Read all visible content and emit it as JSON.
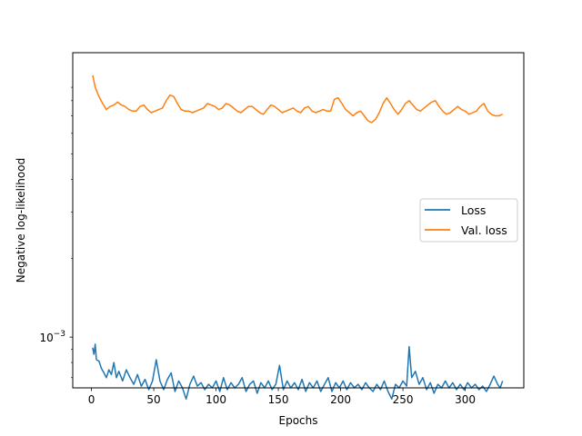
{
  "chart_data": {
    "type": "line",
    "xlabel": "Epochs",
    "ylabel": "Negative log-likelihood",
    "y_scale": "log",
    "xlim": [
      -15,
      347
    ],
    "ylim": [
      0.00064,
      0.0122
    ],
    "x_ticks": [
      0,
      50,
      100,
      150,
      200,
      250,
      300
    ],
    "y_major_ticks": [
      {
        "value": 0.001,
        "label_base": "10",
        "label_exp": "−3"
      }
    ],
    "legend_placement": "center-right",
    "series": [
      {
        "name": "Loss",
        "color": "#1f77b4",
        "points": [
          [
            1,
            0.00091
          ],
          [
            2,
            0.00086
          ],
          [
            3,
            0.00094
          ],
          [
            4,
            0.00082
          ],
          [
            6,
            0.00081
          ],
          [
            8,
            0.00076
          ],
          [
            10,
            0.00073
          ],
          [
            12,
            0.0007
          ],
          [
            14,
            0.00075
          ],
          [
            16,
            0.00072
          ],
          [
            18,
            0.0008
          ],
          [
            20,
            0.0007
          ],
          [
            22,
            0.00074
          ],
          [
            25,
            0.00068
          ],
          [
            28,
            0.00075
          ],
          [
            31,
            0.0007
          ],
          [
            34,
            0.00066
          ],
          [
            37,
            0.00072
          ],
          [
            40,
            0.00065
          ],
          [
            43,
            0.00069
          ],
          [
            46,
            0.00063
          ],
          [
            49,
            0.00068
          ],
          [
            52,
            0.00082
          ],
          [
            55,
            0.00068
          ],
          [
            58,
            0.00063
          ],
          [
            61,
            0.00069
          ],
          [
            64,
            0.00073
          ],
          [
            67,
            0.00062
          ],
          [
            70,
            0.00068
          ],
          [
            73,
            0.00064
          ],
          [
            76,
            0.00058
          ],
          [
            79,
            0.00066
          ],
          [
            82,
            0.00071
          ],
          [
            85,
            0.00065
          ],
          [
            88,
            0.00067
          ],
          [
            91,
            0.00063
          ],
          [
            94,
            0.00066
          ],
          [
            97,
            0.00064
          ],
          [
            100,
            0.00068
          ],
          [
            103,
            0.00062
          ],
          [
            106,
            0.0007
          ],
          [
            109,
            0.00063
          ],
          [
            112,
            0.00067
          ],
          [
            115,
            0.00064
          ],
          [
            118,
            0.00066
          ],
          [
            121,
            0.0007
          ],
          [
            124,
            0.00062
          ],
          [
            127,
            0.00066
          ],
          [
            130,
            0.00068
          ],
          [
            133,
            0.00061
          ],
          [
            136,
            0.00067
          ],
          [
            139,
            0.00064
          ],
          [
            142,
            0.00068
          ],
          [
            145,
            0.00063
          ],
          [
            148,
            0.00066
          ],
          [
            151,
            0.00078
          ],
          [
            154,
            0.00063
          ],
          [
            157,
            0.00068
          ],
          [
            160,
            0.00064
          ],
          [
            163,
            0.00067
          ],
          [
            166,
            0.00063
          ],
          [
            169,
            0.00069
          ],
          [
            172,
            0.00062
          ],
          [
            175,
            0.00067
          ],
          [
            178,
            0.00064
          ],
          [
            181,
            0.00068
          ],
          [
            184,
            0.00062
          ],
          [
            187,
            0.00066
          ],
          [
            190,
            0.0007
          ],
          [
            193,
            0.00062
          ],
          [
            196,
            0.00067
          ],
          [
            199,
            0.00064
          ],
          [
            202,
            0.00068
          ],
          [
            205,
            0.00063
          ],
          [
            208,
            0.00067
          ],
          [
            211,
            0.00064
          ],
          [
            214,
            0.00066
          ],
          [
            217,
            0.00063
          ],
          [
            220,
            0.00067
          ],
          [
            223,
            0.00064
          ],
          [
            226,
            0.00062
          ],
          [
            229,
            0.00066
          ],
          [
            232,
            0.00063
          ],
          [
            235,
            0.00068
          ],
          [
            238,
            0.00062
          ],
          [
            241,
            0.00058
          ],
          [
            244,
            0.00066
          ],
          [
            247,
            0.00064
          ],
          [
            250,
            0.00068
          ],
          [
            253,
            0.00065
          ],
          [
            255,
            0.00092
          ],
          [
            257,
            0.0007
          ],
          [
            260,
            0.00074
          ],
          [
            263,
            0.00066
          ],
          [
            266,
            0.0007
          ],
          [
            269,
            0.00063
          ],
          [
            272,
            0.00067
          ],
          [
            275,
            0.00061
          ],
          [
            278,
            0.00066
          ],
          [
            281,
            0.00064
          ],
          [
            284,
            0.00068
          ],
          [
            287,
            0.00064
          ],
          [
            290,
            0.00067
          ],
          [
            293,
            0.00063
          ],
          [
            296,
            0.00066
          ],
          [
            299,
            0.00063
          ],
          [
            302,
            0.00067
          ],
          [
            305,
            0.00064
          ],
          [
            308,
            0.00066
          ],
          [
            311,
            0.00063
          ],
          [
            314,
            0.00065
          ],
          [
            317,
            0.00062
          ],
          [
            320,
            0.00066
          ],
          [
            323,
            0.00071
          ],
          [
            326,
            0.00066
          ],
          [
            328,
            0.00064
          ],
          [
            330,
            0.00068
          ]
        ]
      },
      {
        "name": "Val. loss",
        "color": "#ff7f0e",
        "points": [
          [
            1,
            0.01
          ],
          [
            3,
            0.009
          ],
          [
            6,
            0.0083
          ],
          [
            9,
            0.0078
          ],
          [
            12,
            0.0074
          ],
          [
            15,
            0.0076
          ],
          [
            18,
            0.0077
          ],
          [
            21,
            0.0079
          ],
          [
            24,
            0.0077
          ],
          [
            27,
            0.0076
          ],
          [
            30,
            0.0074
          ],
          [
            33,
            0.0073
          ],
          [
            36,
            0.0073
          ],
          [
            39,
            0.0076
          ],
          [
            42,
            0.0077
          ],
          [
            45,
            0.0074
          ],
          [
            48,
            0.0072
          ],
          [
            51,
            0.0073
          ],
          [
            54,
            0.0074
          ],
          [
            57,
            0.0075
          ],
          [
            60,
            0.008
          ],
          [
            63,
            0.0084
          ],
          [
            66,
            0.0083
          ],
          [
            69,
            0.0078
          ],
          [
            72,
            0.0074
          ],
          [
            75,
            0.0073
          ],
          [
            78,
            0.0073
          ],
          [
            81,
            0.0072
          ],
          [
            84,
            0.0073
          ],
          [
            87,
            0.0074
          ],
          [
            90,
            0.0075
          ],
          [
            93,
            0.0078
          ],
          [
            96,
            0.0077
          ],
          [
            99,
            0.0076
          ],
          [
            102,
            0.0074
          ],
          [
            105,
            0.0075
          ],
          [
            108,
            0.0078
          ],
          [
            111,
            0.0077
          ],
          [
            114,
            0.0075
          ],
          [
            117,
            0.0073
          ],
          [
            120,
            0.0072
          ],
          [
            123,
            0.0074
          ],
          [
            126,
            0.0076
          ],
          [
            129,
            0.0076
          ],
          [
            132,
            0.0074
          ],
          [
            135,
            0.0072
          ],
          [
            138,
            0.0071
          ],
          [
            141,
            0.0074
          ],
          [
            144,
            0.0077
          ],
          [
            147,
            0.0076
          ],
          [
            150,
            0.0074
          ],
          [
            153,
            0.0072
          ],
          [
            156,
            0.0073
          ],
          [
            159,
            0.0074
          ],
          [
            162,
            0.0075
          ],
          [
            165,
            0.0073
          ],
          [
            168,
            0.0072
          ],
          [
            171,
            0.0075
          ],
          [
            174,
            0.0076
          ],
          [
            177,
            0.0073
          ],
          [
            180,
            0.0072
          ],
          [
            183,
            0.0073
          ],
          [
            186,
            0.0074
          ],
          [
            189,
            0.0073
          ],
          [
            192,
            0.0073
          ],
          [
            195,
            0.0081
          ],
          [
            198,
            0.0082
          ],
          [
            201,
            0.0078
          ],
          [
            204,
            0.0074
          ],
          [
            207,
            0.0072
          ],
          [
            210,
            0.007
          ],
          [
            213,
            0.0072
          ],
          [
            216,
            0.0073
          ],
          [
            219,
            0.007
          ],
          [
            222,
            0.0067
          ],
          [
            225,
            0.0066
          ],
          [
            228,
            0.0068
          ],
          [
            231,
            0.0072
          ],
          [
            234,
            0.0078
          ],
          [
            237,
            0.0082
          ],
          [
            240,
            0.0078
          ],
          [
            243,
            0.0074
          ],
          [
            246,
            0.0071
          ],
          [
            249,
            0.0074
          ],
          [
            252,
            0.0078
          ],
          [
            255,
            0.008
          ],
          [
            258,
            0.0077
          ],
          [
            261,
            0.0074
          ],
          [
            264,
            0.0073
          ],
          [
            267,
            0.0075
          ],
          [
            270,
            0.0077
          ],
          [
            273,
            0.0079
          ],
          [
            276,
            0.008
          ],
          [
            279,
            0.0076
          ],
          [
            282,
            0.0073
          ],
          [
            285,
            0.0071
          ],
          [
            288,
            0.0072
          ],
          [
            291,
            0.0074
          ],
          [
            294,
            0.0076
          ],
          [
            297,
            0.0074
          ],
          [
            300,
            0.0073
          ],
          [
            303,
            0.0071
          ],
          [
            306,
            0.0072
          ],
          [
            309,
            0.0073
          ],
          [
            312,
            0.0076
          ],
          [
            315,
            0.0078
          ],
          [
            318,
            0.0073
          ],
          [
            321,
            0.0071
          ],
          [
            324,
            0.007
          ],
          [
            327,
            0.007
          ],
          [
            330,
            0.0071
          ]
        ]
      }
    ]
  }
}
